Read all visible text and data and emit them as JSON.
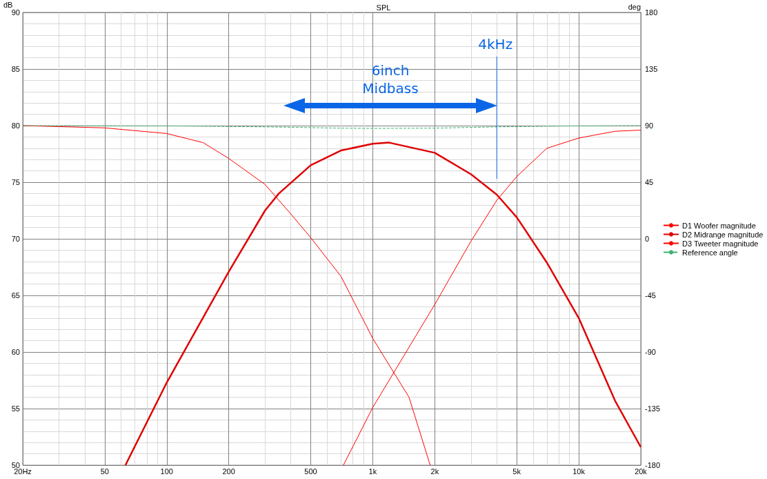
{
  "chart_data": {
    "type": "line",
    "title": "SPL",
    "ylabel": "dB",
    "y2label": "deg",
    "xlim": [
      20,
      20000
    ],
    "xticks": [
      {
        "value": 20,
        "label": "20Hz"
      },
      50,
      100,
      200,
      500,
      {
        "value": 1000,
        "label": "1k"
      },
      {
        "value": 2000,
        "label": "2k"
      },
      {
        "value": 5000,
        "label": "5k"
      },
      {
        "value": 10000,
        "label": "10k"
      },
      {
        "value": 20000,
        "label": "20k"
      }
    ],
    "ylim": [
      50,
      90
    ],
    "yticks": [
      50,
      55,
      60,
      65,
      70,
      75,
      80,
      85,
      90
    ],
    "y2lim": [
      -180,
      180
    ],
    "y2ticks": [
      -180,
      -135,
      -90,
      -45,
      0,
      45,
      90,
      135,
      180
    ],
    "log": "x",
    "grid": true,
    "legend": "right",
    "marker": "none",
    "series": [
      {
        "name": "D1 Woofer magnitude",
        "color": "#ff0000",
        "x": [
          20,
          50,
          100,
          150,
          200,
          300,
          400,
          500,
          700,
          1000,
          1500,
          1900
        ],
        "values": [
          80,
          79.8,
          79.3,
          78.5,
          77.1,
          74.8,
          72.2,
          70.1,
          66.7,
          61.2,
          56,
          50
        ]
      },
      {
        "name": "D2 Midrange magnitude",
        "color": "#e00000",
        "x": [
          63,
          100,
          200,
          300,
          350,
          500,
          700,
          1000,
          1200,
          2000,
          3000,
          4000,
          5000,
          7000,
          10000,
          15000,
          20000
        ],
        "values": [
          50,
          57.3,
          67.1,
          72.5,
          74,
          76.5,
          77.8,
          78.4,
          78.5,
          77.6,
          75.7,
          73.9,
          71.9,
          67.9,
          63,
          55.7,
          51.6
        ]
      },
      {
        "name": "D3 Tweeter magnitude",
        "color": "#ff0000",
        "x": [
          720,
          1000,
          2000,
          3000,
          4000,
          5000,
          7000,
          10000,
          15000,
          20000
        ],
        "values": [
          50,
          55.1,
          64.2,
          69.8,
          73.4,
          75.5,
          78,
          78.9,
          79.5,
          79.6
        ]
      },
      {
        "name": "Reference angle",
        "color": "#3cb371",
        "axis": "y2",
        "line_style": "dashed",
        "x": [
          20,
          100,
          300,
          700,
          1000,
          2000,
          4000,
          10000,
          20000
        ],
        "values": [
          90,
          89.8,
          89,
          88,
          87.8,
          88,
          89,
          89.8,
          90
        ]
      },
      {
        "color": "#0a66e6",
        "x": [
          4000,
          4000
        ],
        "values": [
          75.3,
          86.1
        ]
      }
    ],
    "annotations": [
      "6inch\nMidbass",
      "4kHz"
    ]
  }
}
